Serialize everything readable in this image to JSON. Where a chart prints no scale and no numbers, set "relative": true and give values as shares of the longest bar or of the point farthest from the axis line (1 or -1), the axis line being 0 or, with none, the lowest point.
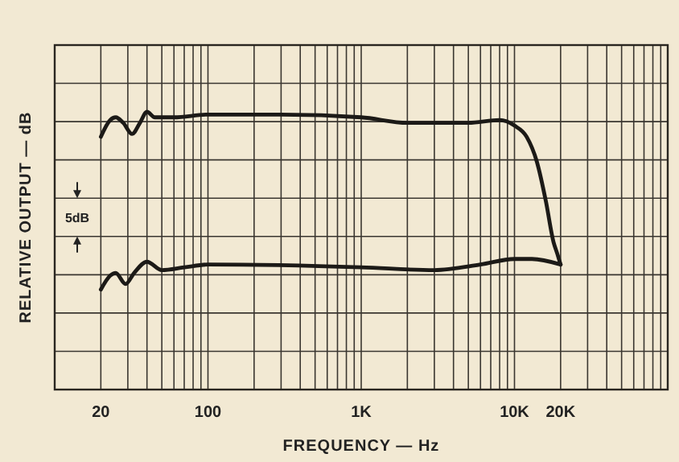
{
  "chart_data": {
    "type": "line",
    "xlabel": "FREQUENCY — Hz",
    "ylabel": "RELATIVE OUTPUT — dB",
    "relative": true,
    "log": "x",
    "grid": true,
    "line_style": "solid",
    "xlim": [
      10,
      100000
    ],
    "xticks": [
      {
        "value": 10,
        "label": null
      },
      20,
      {
        "value": 30,
        "label": null
      },
      {
        "value": 40,
        "label": null
      },
      {
        "value": 50,
        "label": null
      },
      {
        "value": 60,
        "label": null
      },
      {
        "value": 70,
        "label": null
      },
      {
        "value": 80,
        "label": null
      },
      {
        "value": 90,
        "label": null
      },
      100,
      {
        "value": 200,
        "label": null
      },
      {
        "value": 300,
        "label": null
      },
      {
        "value": 400,
        "label": null
      },
      {
        "value": 500,
        "label": null
      },
      {
        "value": 600,
        "label": null
      },
      {
        "value": 700,
        "label": null
      },
      {
        "value": 800,
        "label": null
      },
      {
        "value": 900,
        "label": null
      },
      {
        "value": 1000,
        "label": "1K"
      },
      {
        "value": 2000,
        "label": null
      },
      {
        "value": 3000,
        "label": null
      },
      {
        "value": 4000,
        "label": null
      },
      {
        "value": 5000,
        "label": null
      },
      {
        "value": 6000,
        "label": null
      },
      {
        "value": 7000,
        "label": null
      },
      {
        "value": 8000,
        "label": null
      },
      {
        "value": 9000,
        "label": null
      },
      {
        "value": 10000,
        "label": "10K"
      },
      {
        "value": 20000,
        "label": "20K"
      },
      {
        "value": 30000,
        "label": null
      },
      {
        "value": 40000,
        "label": null
      },
      {
        "value": 50000,
        "label": null
      },
      {
        "value": 60000,
        "label": null
      },
      {
        "value": 70000,
        "label": null
      },
      {
        "value": 80000,
        "label": null
      },
      {
        "value": 90000,
        "label": null
      },
      {
        "value": 100000,
        "label": null
      }
    ],
    "annotations": [
      "5dB"
    ],
    "series": [
      {
        "color": "#1c1a17",
        "x": [
          20,
          23,
          25,
          28,
          32,
          36,
          40,
          45,
          60,
          100,
          300,
          1000,
          2000,
          5000,
          8000,
          10000,
          12000,
          14000,
          16000,
          18000,
          19000,
          20000
        ],
        "values": [
          0.91,
          0.97,
          0.98,
          0.96,
          0.92,
          0.96,
          1.0,
          0.98,
          0.98,
          0.99,
          0.99,
          0.98,
          0.96,
          0.96,
          0.97,
          0.95,
          0.91,
          0.82,
          0.68,
          0.53,
          0.49,
          0.45
        ]
      },
      {
        "color": "#1c1a17",
        "x": [
          20,
          23,
          25,
          29,
          33,
          40,
          50,
          70,
          100,
          1000,
          3000,
          6000,
          10000,
          13000,
          20000
        ],
        "values": [
          0.36,
          0.41,
          0.42,
          0.38,
          0.42,
          0.46,
          0.43,
          0.44,
          0.45,
          0.44,
          0.43,
          0.45,
          0.47,
          0.47,
          0.45
        ]
      }
    ]
  }
}
